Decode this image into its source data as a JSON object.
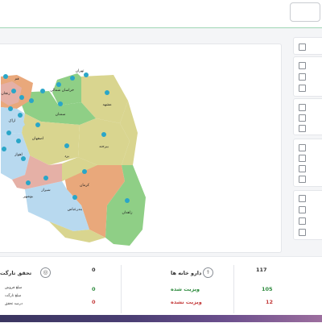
{
  "colors": {
    "green": "#8fcf86",
    "tan": "#d9d58f",
    "orange": "#e9a87b",
    "blue": "#b8d9ef",
    "pink": "#e5b0a6",
    "pin": "#2aa6c8"
  },
  "map": {
    "provinces": [
      "تهران",
      "قم",
      "خراسان شمالی",
      "مشهد",
      "سمنان",
      "اصفهان",
      "یزد",
      "بیرجند",
      "کرمان",
      "زاهدان",
      "بندرعباس",
      "شیراز",
      "اهواز",
      "بوشهر",
      "اراک",
      "زنجان"
    ]
  },
  "stats": {
    "houses_label": "دارو خانه ها",
    "houses_count": "117",
    "visited_label": "ویزیت شده",
    "visited_count": "105",
    "not_visited_label": "ویزیت نشده",
    "not_visited_count": "12",
    "target_label": "تحقق تارگت",
    "target_count": "0",
    "sale_amount_label": "مبلغ فروش",
    "sale_amount_value": "0",
    "target_amount_label": "مبلغ تارگت",
    "target_amount_value": "0",
    "percent_label": "درصد تحقق"
  }
}
